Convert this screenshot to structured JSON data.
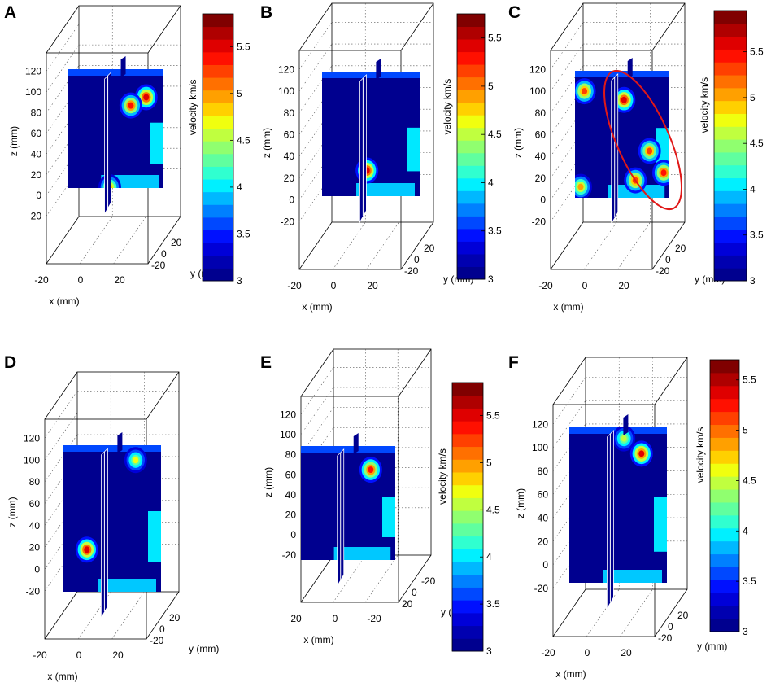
{
  "chart_data": [
    {
      "panel": "A",
      "type": "heatmap",
      "title": "",
      "xlabel": "x (mm)",
      "ylabel": "y (mm)",
      "zlabel": "z (mm)",
      "x_ticks": [
        "-20",
        "0",
        "20"
      ],
      "y_ticks": [
        "20",
        "0",
        "-20"
      ],
      "z_ticks": [
        "120",
        "100",
        "80",
        "60",
        "40",
        "20",
        "0",
        "-20"
      ],
      "zlim": [
        -25,
        130
      ],
      "colorbar": {
        "label": "velocity km/s",
        "range": [
          3,
          5.85
        ],
        "ticks": [
          "5.5",
          "5",
          "4.5",
          "4",
          "3.5",
          "3"
        ]
      },
      "hotspots": [
        {
          "z": 95,
          "velocity": 5.8
        },
        {
          "z": 87,
          "velocity": 5.6
        },
        {
          "z": 8,
          "velocity": 5.0
        }
      ],
      "annotation": ""
    },
    {
      "panel": "B",
      "type": "heatmap",
      "title": "",
      "xlabel": "x (mm)",
      "ylabel": "y (mm)",
      "zlabel": "z (mm)",
      "x_ticks": [
        "-20",
        "0",
        "20"
      ],
      "y_ticks": [
        "20",
        "0",
        "-20"
      ],
      "z_ticks": [
        "120",
        "100",
        "80",
        "60",
        "40",
        "20",
        "0",
        "-20"
      ],
      "zlim": [
        -25,
        130
      ],
      "colorbar": {
        "label": "velocity km/s",
        "range": [
          3,
          5.75
        ],
        "ticks": [
          "5.5",
          "5",
          "4.5",
          "4",
          "3.5",
          "3"
        ]
      },
      "hotspots": [
        {
          "z": 27,
          "velocity": 5.7
        }
      ],
      "annotation": ""
    },
    {
      "panel": "C",
      "type": "heatmap",
      "title": "",
      "xlabel": "x (mm)",
      "ylabel": "y (mm)",
      "zlabel": "z (mm)",
      "x_ticks": [
        "-20",
        "0",
        "20"
      ],
      "y_ticks": [
        "20",
        "0",
        "-20"
      ],
      "z_ticks": [
        "120",
        "100",
        "80",
        "60",
        "40",
        "20",
        "0",
        "-20"
      ],
      "zlim": [
        -25,
        130
      ],
      "colorbar": {
        "label": "velocity km/s",
        "range": [
          3,
          5.95
        ],
        "ticks": [
          "5.5",
          "5",
          "4.5",
          "4",
          "3.5",
          "3"
        ]
      },
      "hotspots": [
        {
          "z": 100,
          "velocity": 5.6
        },
        {
          "z": 92,
          "velocity": 5.9
        },
        {
          "z": 45,
          "velocity": 5.5
        },
        {
          "z": 25,
          "velocity": 5.7
        },
        {
          "z": 18,
          "velocity": 5.6
        },
        {
          "z": 12,
          "velocity": 5.2
        }
      ],
      "annotation": "red ellipse marks cluster of high-velocity zones"
    },
    {
      "panel": "D",
      "type": "heatmap",
      "title": "",
      "xlabel": "x (mm)",
      "ylabel": "y (mm)",
      "zlabel": "z (mm)",
      "x_ticks": [
        "-20",
        "0",
        "20"
      ],
      "y_ticks": [
        "20",
        "0",
        "-20"
      ],
      "z_ticks": [
        "120",
        "100",
        "80",
        "60",
        "40",
        "20",
        "0",
        "-20"
      ],
      "zlim": [
        -25,
        130
      ],
      "colorbar": null,
      "hotspots": [
        {
          "z": 18,
          "velocity": 5.8
        },
        {
          "z": 100,
          "velocity": 4.8
        }
      ],
      "annotation": ""
    },
    {
      "panel": "E",
      "type": "heatmap",
      "title": "",
      "xlabel": "x (mm)",
      "ylabel": "y (mm)",
      "zlabel": "z (mm)",
      "x_ticks": [
        "20",
        "0",
        "-20"
      ],
      "y_ticks": [
        "-20",
        "0",
        "20"
      ],
      "z_ticks": [
        "120",
        "100",
        "80",
        "60",
        "40",
        "20",
        "0",
        "-20"
      ],
      "zlim": [
        -25,
        130
      ],
      "colorbar": {
        "label": "velocity km/s",
        "range": [
          3,
          5.85
        ],
        "ticks": [
          "5.5",
          "5",
          "4.5",
          "4",
          "3.5",
          "3"
        ]
      },
      "hotspots": [
        {
          "z": 65,
          "velocity": 5.7
        }
      ],
      "annotation": ""
    },
    {
      "panel": "F",
      "type": "heatmap",
      "title": "",
      "xlabel": "x (mm)",
      "ylabel": "y (mm)",
      "zlabel": "z (mm)",
      "x_ticks": [
        "-20",
        "0",
        "20"
      ],
      "y_ticks": [
        "20",
        "0",
        "-20"
      ],
      "z_ticks": [
        "120",
        "100",
        "80",
        "60",
        "40",
        "20",
        "0",
        "-20"
      ],
      "zlim": [
        -25,
        130
      ],
      "colorbar": {
        "label": "velocity km/s",
        "range": [
          3,
          5.7
        ],
        "ticks": [
          "5.5",
          "5",
          "4.5",
          "4",
          "3.5",
          "3"
        ]
      },
      "hotspots": [
        {
          "z": 95,
          "velocity": 5.6
        },
        {
          "z": 108,
          "velocity": 4.6
        }
      ],
      "annotation": ""
    }
  ],
  "colors": {
    "grid_line": "#000000",
    "ellipse": "#e01818",
    "slice_edge": "#ffffff",
    "jet": [
      "#00008f",
      "#0000b0",
      "#0000d8",
      "#0010ff",
      "#0048ff",
      "#0080ff",
      "#00b8ff",
      "#00f0ff",
      "#30ffd0",
      "#60ff9f",
      "#90ff6f",
      "#c0ff3f",
      "#f0ff0f",
      "#ffd000",
      "#ffa000",
      "#ff7000",
      "#ff4000",
      "#ff1000",
      "#df0000",
      "#af0000",
      "#800000"
    ]
  }
}
